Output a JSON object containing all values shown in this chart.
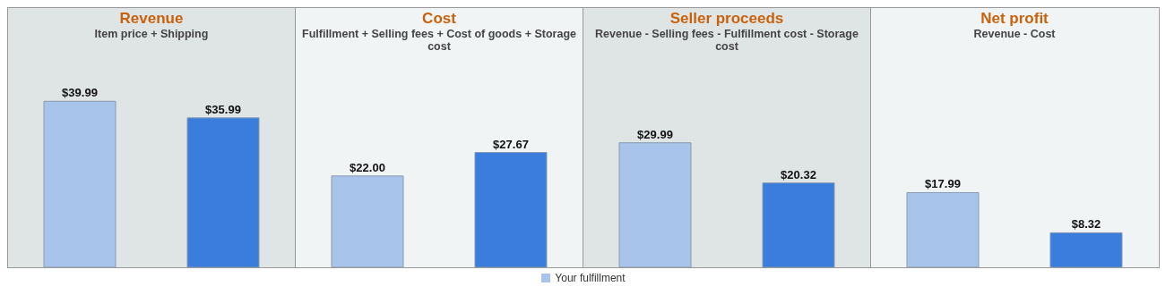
{
  "chart_data": [
    {
      "type": "bar",
      "title": "Revenue",
      "subtitle": "Item price + Shipping",
      "categories": [
        null,
        null
      ],
      "series": [
        {
          "colors": [
            "#a9c4ea",
            "#3a7ddc"
          ],
          "values": [
            39.99,
            35.99
          ],
          "value_labels": [
            "$39.99",
            "$35.99"
          ]
        }
      ]
    },
    {
      "type": "bar",
      "title": "Cost",
      "subtitle": "Fulfillment + Selling fees + Cost of goods + Storage cost",
      "categories": [
        null,
        null
      ],
      "legend": "bottom",
      "series": [
        {
          "name": "Your fulfillment",
          "color": "#a9c4ea",
          "colors": [
            "#a9c4ea",
            "#3a7ddc"
          ],
          "values": [
            22.0,
            27.67
          ],
          "value_labels": [
            "$22.00",
            "$27.67"
          ]
        }
      ]
    },
    {
      "type": "bar",
      "title": "Seller proceeds",
      "subtitle": "Revenue - Selling fees - Fulfillment cost - Storage cost",
      "categories": [
        null,
        null
      ],
      "series": [
        {
          "colors": [
            "#a9c4ea",
            "#3a7ddc"
          ],
          "values": [
            29.99,
            20.32
          ],
          "value_labels": [
            "$29.99",
            "$20.32"
          ]
        }
      ]
    },
    {
      "type": "bar",
      "title": "Net profit",
      "subtitle": "Revenue - Cost",
      "categories": [
        null,
        null
      ],
      "series": [
        {
          "colors": [
            "#a9c4ea",
            "#3a7ddc"
          ],
          "values": [
            17.99,
            8.32
          ],
          "value_labels": [
            "$17.99",
            "$8.32"
          ]
        }
      ]
    }
  ]
}
